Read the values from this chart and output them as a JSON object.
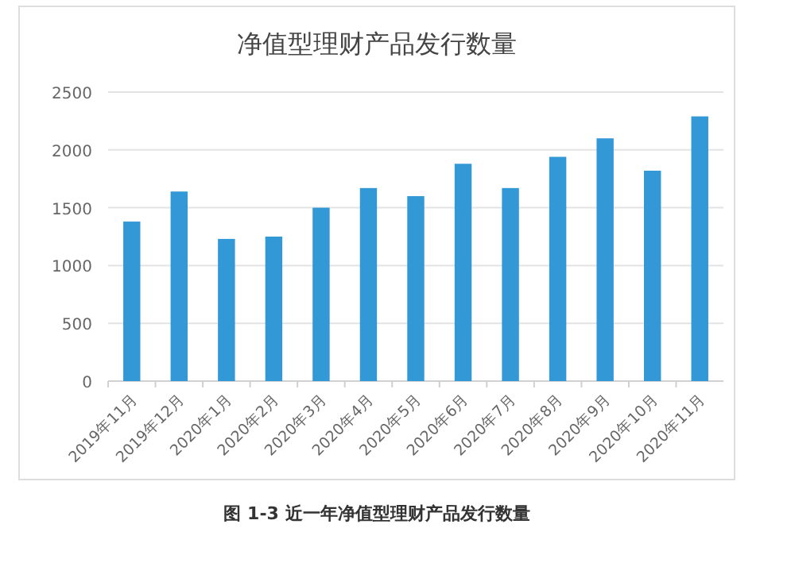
{
  "chart_data": {
    "type": "bar",
    "title": "净值型理财产品发行数量",
    "categories": [
      "2019年11月",
      "2019年12月",
      "2020年1月",
      "2020年2月",
      "2020年3月",
      "2020年4月",
      "2020年5月",
      "2020年6月",
      "2020年7月",
      "2020年8月",
      "2020年9月",
      "2020年10月",
      "2020年11月"
    ],
    "values": [
      1380,
      1640,
      1230,
      1250,
      1500,
      1670,
      1600,
      1880,
      1670,
      1940,
      2100,
      1820,
      2290
    ],
    "color": "#3399d6",
    "ylim": [
      0,
      2500
    ],
    "yticks": [
      0,
      500,
      1000,
      1500,
      2000,
      2500
    ],
    "grid": "y",
    "annotations": [
      "图 1-3 近一年净值型理财产品发行数量"
    ]
  }
}
